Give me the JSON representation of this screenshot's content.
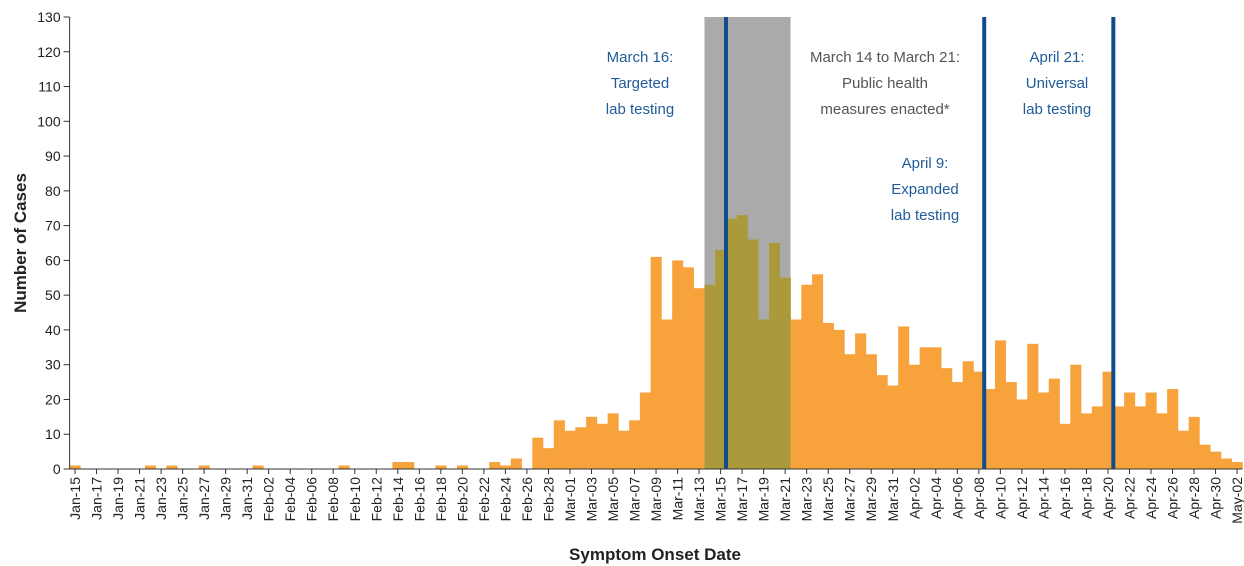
{
  "chart_data": {
    "type": "bar",
    "x_label": "Symptom Onset Date",
    "y_label": "Number of Cases",
    "categories": [
      "Jan-15",
      null,
      "Jan-17",
      null,
      "Jan-19",
      null,
      "Jan-21",
      null,
      "Jan-23",
      null,
      "Jan-25",
      null,
      "Jan-27",
      null,
      "Jan-29",
      null,
      "Jan-31",
      null,
      "Feb-02",
      null,
      "Feb-04",
      null,
      "Feb-06",
      null,
      "Feb-08",
      null,
      "Feb-10",
      null,
      "Feb-12",
      null,
      "Feb-14",
      null,
      "Feb-16",
      null,
      "Feb-18",
      null,
      "Feb-20",
      null,
      "Feb-22",
      null,
      "Feb-24",
      null,
      "Feb-26",
      null,
      "Feb-28",
      null,
      "Mar-01",
      null,
      "Mar-03",
      null,
      "Mar-05",
      null,
      "Mar-07",
      null,
      "Mar-09",
      null,
      "Mar-11",
      null,
      "Mar-13",
      null,
      "Mar-15",
      null,
      "Mar-17",
      null,
      "Mar-19",
      null,
      "Mar-21",
      null,
      "Mar-23",
      null,
      "Mar-25",
      null,
      "Mar-27",
      null,
      "Mar-29",
      null,
      "Mar-31",
      null,
      "Apr-02",
      null,
      "Apr-04",
      null,
      "Apr-06",
      null,
      "Apr-08",
      null,
      "Apr-10",
      null,
      "Apr-12",
      null,
      "Apr-14",
      null,
      "Apr-16",
      null,
      "Apr-18",
      null,
      "Apr-20",
      null,
      "Apr-22",
      null,
      "Apr-24",
      null,
      "Apr-26",
      null,
      "Apr-28",
      null,
      "Apr-30",
      null,
      "May-02"
    ],
    "values": [
      1,
      0,
      0,
      0,
      0,
      0,
      0,
      1,
      0,
      1,
      0,
      0,
      1,
      0,
      0,
      0,
      0,
      1,
      0,
      0,
      0,
      0,
      0,
      0,
      0,
      1,
      0,
      0,
      0,
      0,
      2,
      2,
      0,
      0,
      1,
      0,
      1,
      0,
      0,
      2,
      1,
      3,
      0,
      9,
      6,
      14,
      11,
      12,
      15,
      13,
      16,
      11,
      14,
      22,
      61,
      43,
      60,
      58,
      52,
      53,
      63,
      72,
      73,
      66,
      43,
      65,
      55,
      43,
      53,
      56,
      42,
      40,
      33,
      39,
      33,
      27,
      24,
      41,
      30,
      35,
      35,
      29,
      25,
      31,
      28,
      23,
      37,
      25,
      20,
      36,
      22,
      26,
      13,
      30,
      16,
      18,
      28,
      18,
      22,
      18,
      22,
      16,
      23,
      11,
      15,
      7,
      5,
      3,
      2
    ],
    "color": "#f7a23b",
    "shade_bar_color": "#ab9a3b",
    "ylim": [
      0,
      130
    ],
    "yticks": [
      0,
      10,
      20,
      30,
      40,
      50,
      60,
      70,
      80,
      90,
      100,
      110,
      120,
      130
    ],
    "span": {
      "x": [
        58.5,
        66.5
      ],
      "color": "#aaaaaa"
    },
    "vlines": [
      {
        "x": 60.5,
        "color": "#0f4c8a"
      },
      {
        "x": 84.5,
        "color": "#0f4c8a"
      },
      {
        "x": 96.5,
        "color": "#0f4c8a"
      }
    ],
    "annotations": [
      {
        "lines": [
          "March 16:",
          "Targeted",
          "lab testing"
        ],
        "color": "#1f5c99"
      },
      {
        "lines": [
          "March 14 to March 21:",
          "Public health",
          "measures enacted*"
        ],
        "color": "#555555"
      },
      {
        "lines": [
          "April 9:",
          "Expanded",
          "lab testing"
        ],
        "color": "#1f5c99"
      },
      {
        "lines": [
          "April 21:",
          "Universal",
          "lab testing"
        ],
        "color": "#1f5c99"
      }
    ]
  }
}
